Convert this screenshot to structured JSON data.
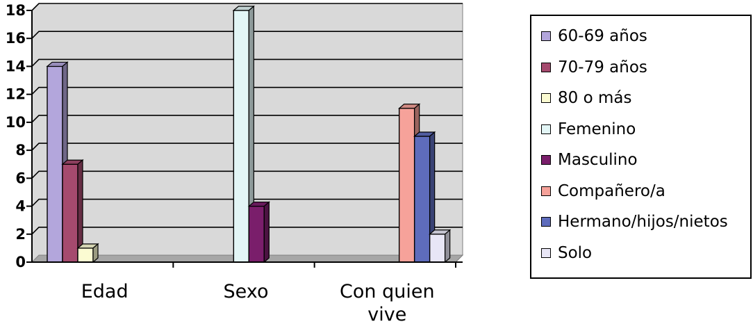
{
  "chart_data": {
    "type": "bar",
    "categories": [
      "Edad",
      "Sexo",
      "Con quien vive"
    ],
    "category_lines": [
      [
        "Edad"
      ],
      [
        "Sexo"
      ],
      [
        "Con quien",
        "vive"
      ]
    ],
    "ylim": [
      0,
      18
    ],
    "yticks": [
      "0",
      "2",
      "4",
      "6",
      "8",
      "10",
      "12",
      "14",
      "16",
      "18"
    ],
    "grid": true,
    "legend_position": "right",
    "series": [
      {
        "name": "60-69 años",
        "label": "60-69 años",
        "category": "Edad",
        "value": 14,
        "color": "#b3a6dc"
      },
      {
        "name": "70-79 años",
        "label": "70-79 años",
        "category": "Edad",
        "value": 7,
        "color": "#a54a6e"
      },
      {
        "name": "80 o más",
        "label": "80 o más",
        "category": "Edad",
        "value": 1,
        "color": "#fbfbd2"
      },
      {
        "name": "Femenino",
        "label": "Femenino",
        "category": "Sexo",
        "value": 18,
        "color": "#e3f6f6"
      },
      {
        "name": "Masculino",
        "label": "Masculino",
        "category": "Sexo",
        "value": 4,
        "color": "#7a1e6b"
      },
      {
        "name": "Compañero/a",
        "label": "Compañero/a",
        "category": "Con quien vive",
        "value": 11,
        "color": "#f6a29a"
      },
      {
        "name": "Hermano/hijos/nietos",
        "label": "Hermano/hijos/nietos",
        "category": "Con quien vive",
        "value": 9,
        "color": "#5e6cbc"
      },
      {
        "name": "Solo",
        "label": "Solo",
        "category": "Con quien vive",
        "value": 2,
        "color": "#e8e6f6"
      }
    ],
    "colors": {
      "plot_background": "#d9d9d9",
      "gridline": "#000000"
    }
  }
}
